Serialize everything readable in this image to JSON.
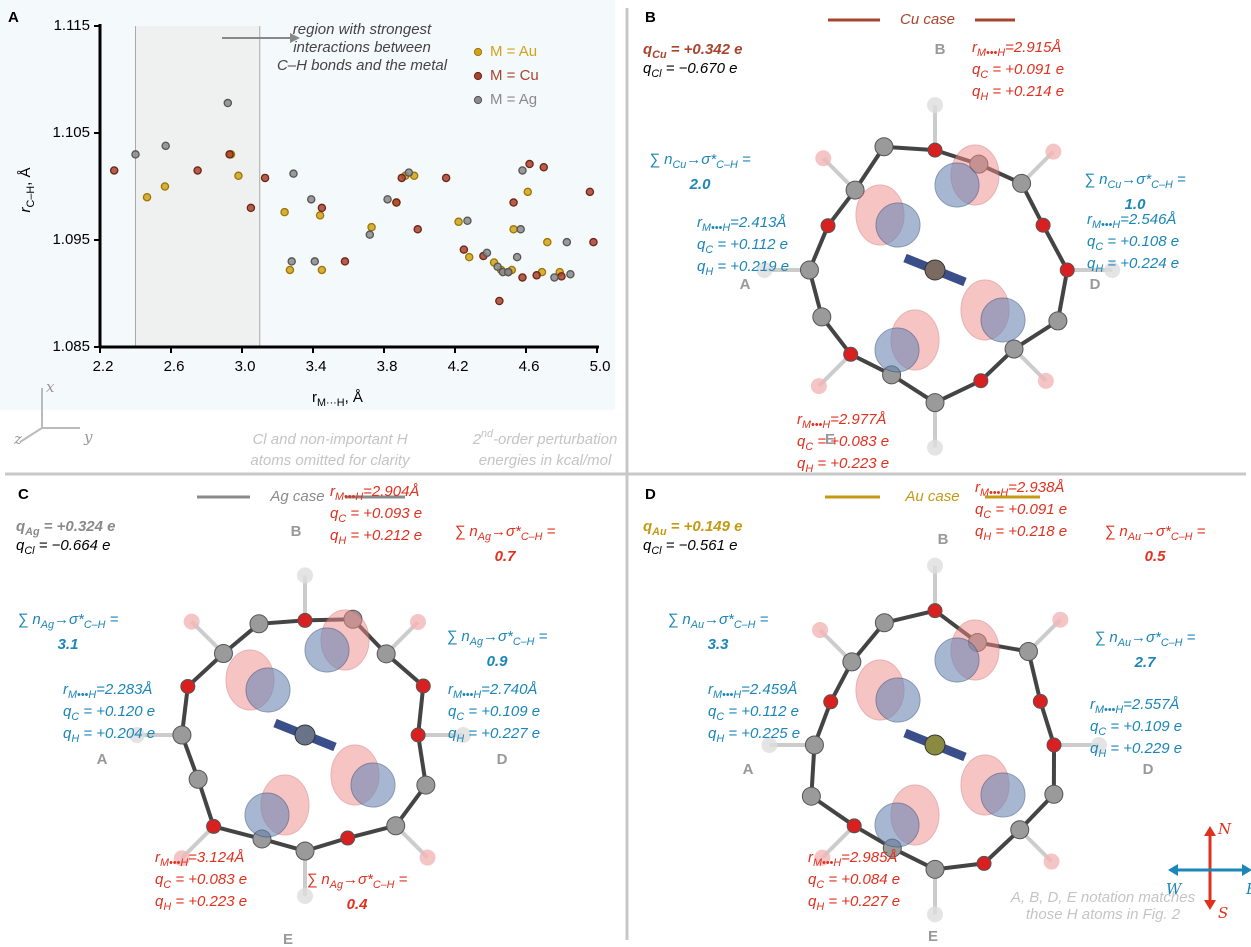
{
  "chart_data": {
    "type": "scatter",
    "panel_label": "A",
    "xlabel": [
      "r",
      "M···H",
      ", Å"
    ],
    "ylabel": [
      "r",
      "C–H",
      ", Å"
    ],
    "annotation": [
      "region with strongest",
      "interactions between",
      "C–H bonds and the metal"
    ],
    "xlim": [
      2.2,
      5.0
    ],
    "ylim": [
      1.085,
      1.115
    ],
    "xticks": [
      2.2,
      2.6,
      {
        "value": 3.0,
        "label": "3.0"
      },
      3.4,
      3.8,
      4.2,
      4.6,
      {
        "value": 5.0,
        "label": "5.0"
      }
    ],
    "yticks": [
      1.085,
      1.095,
      1.105,
      1.115
    ],
    "highlight_xlim": [
      2.4,
      3.1
    ],
    "legend": "upper right",
    "series": [
      {
        "name": "M = Au",
        "color": "#d1a21a",
        "x": [
          2.465,
          2.566,
          2.938,
          2.98,
          3.24,
          3.27,
          3.44,
          3.45,
          3.73,
          3.87,
          3.92,
          3.97,
          4.22,
          4.28,
          4.42,
          4.46,
          4.52,
          4.61,
          4.53,
          4.69,
          4.72,
          4.79
        ],
        "values": [
          1.099,
          1.1,
          1.103,
          1.101,
          1.0976,
          1.0922,
          1.0973,
          1.0922,
          1.0962,
          1.0985,
          1.101,
          1.101,
          1.0967,
          1.0934,
          1.0929,
          1.0922,
          1.0922,
          1.0995,
          1.096,
          1.092,
          1.0948,
          1.092
        ]
      },
      {
        "name": "M = Cu",
        "color": "#a8442e",
        "x": [
          2.28,
          2.75,
          2.93,
          3.05,
          3.13,
          3.45,
          3.58,
          3.87,
          3.9,
          3.99,
          4.15,
          4.25,
          4.36,
          4.45,
          4.5,
          4.53,
          4.58,
          4.62,
          4.66,
          4.7,
          4.8,
          4.96,
          4.98
        ],
        "values": [
          1.1015,
          1.1015,
          1.103,
          1.098,
          1.1008,
          1.098,
          1.093,
          1.0985,
          1.1008,
          1.096,
          1.1008,
          1.0941,
          1.0935,
          1.0893,
          1.092,
          1.0985,
          1.0915,
          1.1021,
          1.0917,
          1.1018,
          1.0916,
          1.0995,
          1.0948
        ]
      },
      {
        "name": "M = Ag",
        "color": "#8a8a8a",
        "x": [
          2.4,
          2.57,
          2.92,
          3.28,
          3.29,
          3.39,
          3.41,
          3.72,
          3.82,
          3.94,
          4.27,
          4.38,
          4.44,
          4.47,
          4.5,
          4.57,
          4.58,
          4.76,
          4.83,
          4.85,
          4.55
        ],
        "values": [
          1.103,
          1.1038,
          1.1078,
          1.093,
          1.1012,
          1.0988,
          1.093,
          1.0955,
          1.0988,
          1.1013,
          1.0968,
          1.0938,
          1.0925,
          1.092,
          1.092,
          1.096,
          1.1015,
          1.0915,
          1.0948,
          1.0918,
          1.0934
        ]
      }
    ]
  },
  "axes_labels": [
    "x",
    "y",
    "z"
  ],
  "notes": [
    [
      "Cl and non-important H",
      "atoms omitted for clarity"
    ],
    [
      [
        "2",
        "nd",
        "-order perturbation"
      ],
      [
        "energies in kcal/mol"
      ]
    ]
  ],
  "compass": [
    "N",
    "S",
    "E",
    "W"
  ],
  "footnote": [
    "A, B, D, E notation matches",
    "those H atoms in Fig. 2"
  ],
  "panels": [
    {
      "label": "B",
      "title": "Cu case",
      "color": "#a8442e",
      "charges": [
        [
          "q",
          "Cu",
          " = +0.342 e"
        ],
        [
          "q",
          "Cl",
          " = −0.670 e"
        ]
      ],
      "atoms": [
        "A",
        "B",
        "D",
        "E"
      ],
      "annotations": [
        [
          [
            "r",
            "M•••H",
            "=2.915Å"
          ],
          [
            "q",
            "C",
            " = +0.091 e"
          ],
          [
            "q",
            "H",
            " = +0.214 e"
          ]
        ],
        [
          [
            "∑ n",
            "Cu",
            "→σ*",
            "C–H",
            " ="
          ],
          [
            "2.0"
          ]
        ],
        [
          [
            "∑ n",
            "Cu",
            "→σ*",
            "C–H",
            " ="
          ],
          [
            "1.0"
          ]
        ],
        [
          [
            "r",
            "M•••H",
            "=2.413Å"
          ],
          [
            "q",
            "C",
            " = +0.112 e"
          ],
          [
            "q",
            "H",
            " = +0.219 e"
          ]
        ],
        [
          [
            "r",
            "M•••H",
            "=2.546Å"
          ],
          [
            "q",
            "C",
            " = +0.108 e"
          ],
          [
            "q",
            "H",
            " = +0.224 e"
          ]
        ],
        [
          [
            "r",
            "M•••H",
            "=2.977Å"
          ],
          [
            "q",
            "C",
            " = +0.083 e"
          ],
          [
            "q",
            "H",
            " = +0.223 e"
          ]
        ]
      ]
    },
    {
      "label": "C",
      "title": "Ag case",
      "color": "#8a8a8a",
      "charges": [
        [
          "q",
          "Ag",
          " = +0.324 e"
        ],
        [
          "q",
          "Cl",
          " = −0.664 e"
        ]
      ],
      "atoms": [
        "A",
        "B",
        "D",
        "E"
      ],
      "annotations": [
        [
          [
            "r",
            "M•••H",
            "=2.904Å"
          ],
          [
            "q",
            "C",
            " = +0.093 e"
          ],
          [
            "q",
            "H",
            " = +0.212 e"
          ]
        ],
        [
          [
            "∑ n",
            "Ag",
            "→σ*",
            "C–H",
            " ="
          ],
          [
            "0.7"
          ]
        ],
        [
          [
            "∑ n",
            "Ag",
            "→σ*",
            "C–H",
            " ="
          ],
          [
            "3.1"
          ]
        ],
        [
          [
            "∑ n",
            "Ag",
            "→σ*",
            "C–H",
            " ="
          ],
          [
            "0.9"
          ]
        ],
        [
          [
            "r",
            "M•••H",
            "=2.283Å"
          ],
          [
            "q",
            "C",
            " = +0.120 e"
          ],
          [
            "q",
            "H",
            " = +0.204 e"
          ]
        ],
        [
          [
            "r",
            "M•••H",
            "=2.740Å"
          ],
          [
            "q",
            "C",
            " = +0.109 e"
          ],
          [
            "q",
            "H",
            " = +0.227 e"
          ]
        ],
        [
          [
            "r",
            "M•••H",
            "=3.124Å"
          ],
          [
            "q",
            "C",
            " = +0.083 e"
          ],
          [
            "q",
            "H",
            " = +0.223 e"
          ]
        ],
        [
          [
            "∑ n",
            "Ag",
            "→σ*",
            "C–H",
            " ="
          ],
          [
            "0.4"
          ]
        ]
      ]
    },
    {
      "label": "D",
      "title": "Au case",
      "color": "#c49a12",
      "charges": [
        [
          "q",
          "Au",
          " = +0.149 e"
        ],
        [
          "q",
          "Cl",
          " = −0.561 e"
        ]
      ],
      "atoms": [
        "A",
        "B",
        "D",
        "E"
      ],
      "annotations": [
        [
          [
            "r",
            "M•••H",
            "=2.938Å"
          ],
          [
            "q",
            "C",
            " = +0.091 e"
          ],
          [
            "q",
            "H",
            " = +0.218 e"
          ]
        ],
        [
          [
            "∑ n",
            "Au",
            "→σ*",
            "C–H",
            " ="
          ],
          [
            "0.5"
          ]
        ],
        [
          [
            "∑ n",
            "Au",
            "→σ*",
            "C–H",
            " ="
          ],
          [
            "3.3"
          ]
        ],
        [
          [
            "∑ n",
            "Au",
            "→σ*",
            "C–H",
            " ="
          ],
          [
            "2.7"
          ]
        ],
        [
          [
            "r",
            "M•••H",
            "=2.459Å"
          ],
          [
            "q",
            "C",
            " = +0.112 e"
          ],
          [
            "q",
            "H",
            " = +0.225 e"
          ]
        ],
        [
          [
            "r",
            "M•••H",
            "=2.557Å"
          ],
          [
            "q",
            "C",
            " = +0.109 e"
          ],
          [
            "q",
            "H",
            " = +0.229 e"
          ]
        ],
        [
          [
            "r",
            "M•••H",
            "=2.985Å"
          ],
          [
            "q",
            "C",
            " = +0.084 e"
          ],
          [
            "q",
            "H",
            " = +0.227 e"
          ]
        ]
      ]
    }
  ]
}
